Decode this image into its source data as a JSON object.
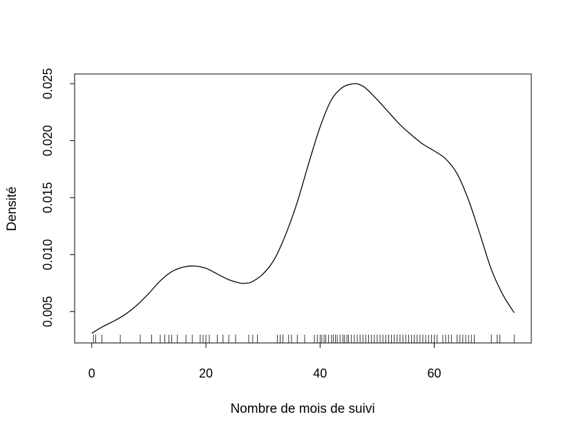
{
  "chart_data": {
    "type": "line",
    "title": "",
    "xlabel": "Nombre de mois de suivi",
    "ylabel": "Densité",
    "xlim": [
      -3,
      77
    ],
    "ylim": [
      0.00225,
      0.02585
    ],
    "x_ticks": [
      0,
      20,
      40,
      60
    ],
    "x_tick_labels": [
      "0",
      "20",
      "40",
      "60"
    ],
    "y_ticks": [
      0.005,
      0.01,
      0.015,
      0.02,
      0.025
    ],
    "y_tick_labels": [
      "0.005",
      "0.010",
      "0.015",
      "0.020",
      "0.025"
    ],
    "grid": false,
    "legend": "none",
    "series": [
      {
        "x": [
          0,
          2,
          4,
          6,
          8,
          10,
          12,
          14,
          16,
          18,
          20,
          22,
          24,
          26,
          27,
          28,
          30,
          32,
          34,
          36,
          38,
          40,
          42,
          44,
          46,
          47,
          48,
          50,
          52,
          54,
          56,
          58,
          60,
          62,
          64,
          66,
          68,
          70,
          72,
          74
        ],
        "y": [
          0.0031,
          0.0037,
          0.0042,
          0.0048,
          0.0056,
          0.0066,
          0.0077,
          0.0085,
          0.0089,
          0.009,
          0.0088,
          0.0083,
          0.0078,
          0.0075,
          0.0075,
          0.0076,
          0.0083,
          0.0096,
          0.0118,
          0.0146,
          0.018,
          0.0212,
          0.0236,
          0.0247,
          0.025,
          0.0249,
          0.0246,
          0.0236,
          0.0225,
          0.0214,
          0.0205,
          0.0197,
          0.0191,
          0.0184,
          0.0171,
          0.0148,
          0.0118,
          0.0087,
          0.0065,
          0.0049
        ]
      }
    ],
    "rug": [
      0.3,
      0.7,
      1.8,
      5,
      8.5,
      10.5,
      12,
      12.8,
      13.5,
      14,
      15,
      16.5,
      17.6,
      19,
      19.5,
      20,
      20.6,
      22,
      23,
      24,
      25.2,
      27.5,
      28.2,
      29,
      32.5,
      33,
      33.5,
      34.5,
      35,
      36,
      37.3,
      39,
      39.5,
      40,
      40.3,
      40.7,
      41,
      41.5,
      42,
      42.3,
      42.7,
      43,
      43.5,
      44,
      44.3,
      44.7,
      45,
      45.5,
      46,
      46.5,
      47,
      47.5,
      48,
      48.5,
      49,
      49.5,
      50,
      50.5,
      51,
      51.5,
      52,
      52.5,
      53,
      53.5,
      54,
      54.5,
      55,
      55.5,
      56,
      56.5,
      57,
      57.5,
      58,
      58.5,
      59,
      59.5,
      60,
      60.5,
      61.5,
      62,
      62.5,
      63,
      64,
      64.5,
      65,
      65.5,
      66,
      66.5,
      67,
      70,
      71,
      71.5,
      74
    ]
  }
}
